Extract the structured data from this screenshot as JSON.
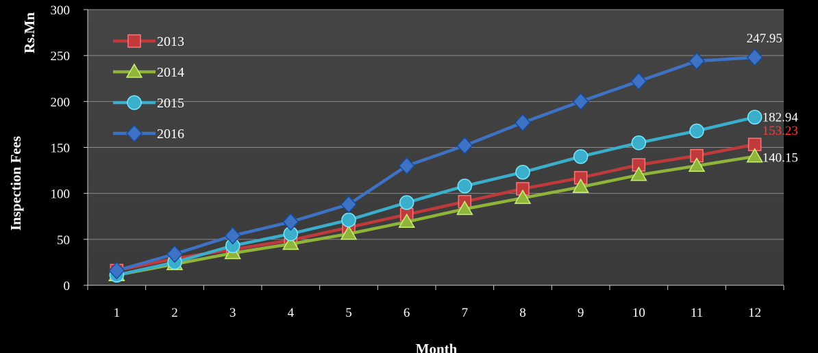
{
  "chart_data": {
    "type": "line",
    "title": "",
    "xlabel": "Month",
    "ylabel": "Inspection Fees",
    "yunit": "Rs.Mn",
    "x": [
      1,
      2,
      3,
      4,
      5,
      6,
      7,
      8,
      9,
      10,
      11,
      12
    ],
    "ylim": [
      0,
      300
    ],
    "yticks": [
      0,
      50,
      100,
      150,
      200,
      250,
      300
    ],
    "grid": "horizontal",
    "legend_position": "top-left",
    "background_color": "#404040",
    "series": [
      {
        "name": "2013",
        "marker": "square",
        "color": "#c0393b",
        "values": [
          16,
          29,
          39,
          49,
          63,
          77,
          91,
          105,
          117,
          131,
          141,
          153.23
        ],
        "end_label": "153.23",
        "end_label_color": "#ff3b3b"
      },
      {
        "name": "2014",
        "marker": "triangle",
        "color": "#8fb43a",
        "values": [
          11,
          23,
          35,
          45,
          56,
          69,
          83,
          95,
          107,
          120,
          130,
          140.15
        ],
        "end_label": "140.15",
        "end_label_color": "#ffffff"
      },
      {
        "name": "2015",
        "marker": "circle",
        "color": "#3aaecb",
        "values": [
          11,
          25,
          43,
          56,
          71,
          90,
          108,
          123,
          140,
          155,
          168,
          182.94
        ],
        "end_label": "182.94",
        "end_label_color": "#ffffff"
      },
      {
        "name": "2016",
        "marker": "diamond",
        "color": "#3d72c4",
        "values": [
          16,
          34,
          54,
          69,
          88,
          130,
          152,
          177,
          200,
          222,
          244,
          247.95
        ],
        "end_label": "247.95",
        "end_label_color": "#ffffff"
      }
    ]
  }
}
